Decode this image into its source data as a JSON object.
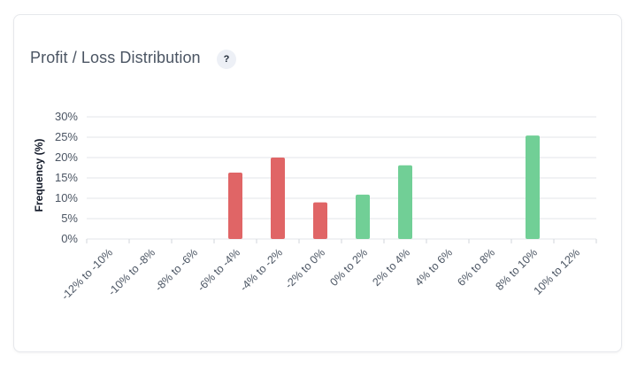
{
  "card": {
    "title": "Profit / Loss Distribution",
    "help_label": "?"
  },
  "colors": {
    "loss": "#e06566",
    "profit": "#71cf96",
    "grid": "#e3e5e8",
    "axis_text": "#4b5563"
  },
  "chart_data": {
    "type": "bar",
    "ylabel": "Frequency (%)",
    "xlabel": "",
    "ylim": [
      0,
      30
    ],
    "yticks": [
      0,
      5,
      10,
      15,
      20,
      25,
      30
    ],
    "ytick_labels": [
      "0%",
      "5%",
      "10%",
      "15%",
      "20%",
      "25%",
      "30%"
    ],
    "categories": [
      "-12% to -10%",
      "-10% to -8%",
      "-8% to -6%",
      "-6% to -4%",
      "-4% to -2%",
      "-2% to 0%",
      "0% to 2%",
      "2% to 4%",
      "4% to 6%",
      "6% to 8%",
      "8% to 10%",
      "10% to 12%"
    ],
    "values": [
      0,
      0,
      0,
      16.3,
      20,
      9,
      10.9,
      18.1,
      0,
      0,
      25.4,
      0
    ],
    "bar_colors": [
      "loss",
      "loss",
      "loss",
      "loss",
      "loss",
      "loss",
      "profit",
      "profit",
      "profit",
      "profit",
      "profit",
      "profit"
    ],
    "grid": true,
    "legend": "none"
  }
}
